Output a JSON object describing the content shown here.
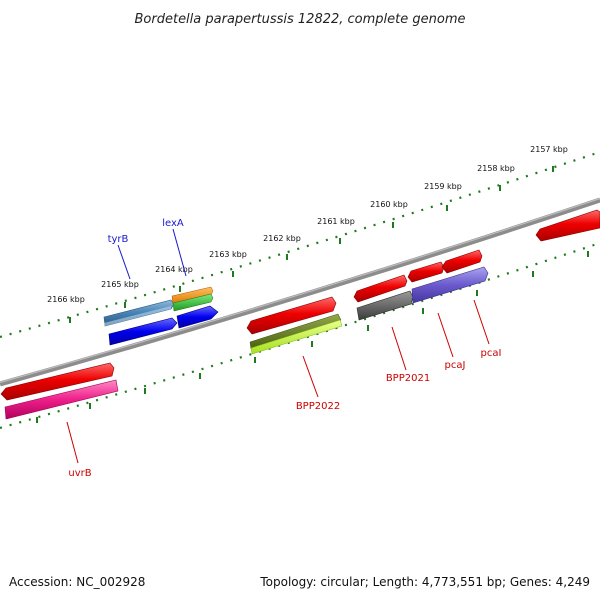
{
  "title": "Bordetella parapertussis 12822, complete genome",
  "accession": "Accession: NC_002928",
  "topology": "Topology: circular; Length: 4,773,551 bp; Genes: 4,249",
  "colors": {
    "backbone": "#7a7a7a",
    "tick": "#1f7a1f",
    "label_red": "#cc0000",
    "label_blue": "#1a1acc"
  },
  "scale_labels": [
    "2157 kbp",
    "2158 kbp",
    "2159 kbp",
    "2160 kbp",
    "2161 kbp",
    "2162 kbp",
    "2163 kbp",
    "2164 kbp",
    "2165 kbp",
    "2166 kbp"
  ],
  "gene_labels": [
    "tyrB",
    "lexA",
    "BPP2022",
    "BPP2021",
    "pcaJ",
    "pcaI",
    "uvrB"
  ]
}
